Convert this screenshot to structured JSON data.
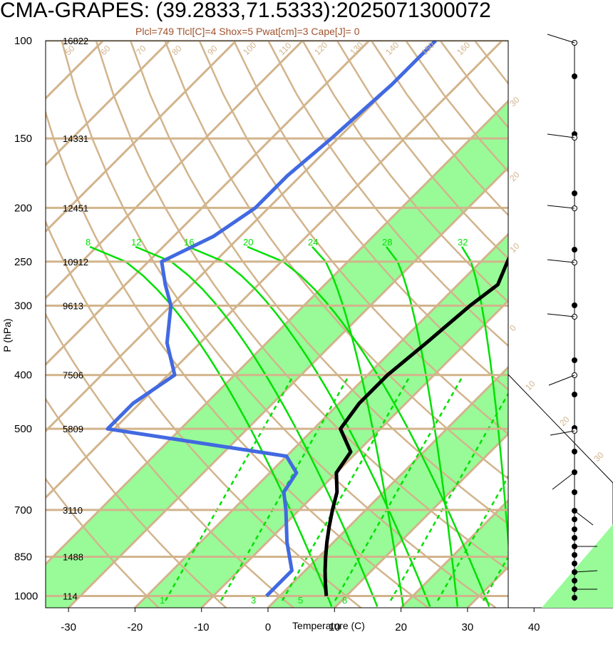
{
  "title": "CMA-GRAPES: (39.2833,71.5333):2025071300072",
  "subtitle": "Plcl=749 Tlcl[C]=4 Shox=5 Pwat[cm]=3 Cape[J]= 0",
  "colors": {
    "temperature": "#000000",
    "dewpoint": "#4169e1",
    "band": "#98fb98",
    "isotherm": "#d2b48c",
    "moist_adiabat": "#00e000",
    "mixing_ratio": "#00e000"
  },
  "chart_data": {
    "type": "line",
    "title": "CMA-GRAPES: (39.2833,71.5333):2025071300072",
    "xlabel": "Temperature (C)",
    "ylabel": "P (hPa)",
    "x_ticks": [
      -30,
      -20,
      -10,
      0,
      10,
      20,
      30,
      40
    ],
    "y_ticks": [
      100,
      150,
      200,
      250,
      300,
      400,
      500,
      700,
      850,
      1000
    ],
    "xlim": [
      -33,
      51
    ],
    "ylim": [
      1050,
      100
    ],
    "y_scale": "log",
    "height_labels": [
      {
        "p": 100,
        "label": "16822"
      },
      {
        "p": 150,
        "label": "14331"
      },
      {
        "p": 200,
        "label": "12451"
      },
      {
        "p": 250,
        "label": "10912"
      },
      {
        "p": 300,
        "label": "9613"
      },
      {
        "p": 400,
        "label": "7506"
      },
      {
        "p": 500,
        "label": "5809"
      },
      {
        "p": 700,
        "label": "3110"
      },
      {
        "p": 850,
        "label": "1488"
      },
      {
        "p": 1000,
        "label": "114"
      }
    ],
    "series": [
      {
        "name": "Temperature",
        "points": [
          [
            -10,
            100
          ],
          [
            -14,
            120
          ],
          [
            -16,
            150
          ],
          [
            -19,
            175
          ],
          [
            -19.5,
            200
          ],
          [
            -18,
            225
          ],
          [
            -16,
            250
          ],
          [
            -14,
            275
          ],
          [
            -15,
            300
          ],
          [
            -16,
            350
          ],
          [
            -17,
            400
          ],
          [
            -17,
            450
          ],
          [
            -16,
            500
          ],
          [
            -11,
            550
          ],
          [
            -10,
            600
          ],
          [
            -7,
            650
          ],
          [
            -5,
            700
          ],
          [
            -3,
            750
          ],
          [
            -1,
            800
          ],
          [
            1,
            850
          ],
          [
            3,
            900
          ],
          [
            5,
            950
          ],
          [
            7,
            1000
          ]
        ]
      },
      {
        "name": "Dewpoint",
        "points": [
          [
            -60,
            100
          ],
          [
            -60,
            120
          ],
          [
            -61,
            150
          ],
          [
            -62,
            175
          ],
          [
            -62,
            200
          ],
          [
            -64,
            225
          ],
          [
            -68,
            250
          ],
          [
            -64,
            275
          ],
          [
            -60,
            300
          ],
          [
            -55,
            350
          ],
          [
            -49,
            400
          ],
          [
            -51,
            450
          ],
          [
            -51,
            500
          ],
          [
            -20,
            560
          ],
          [
            -16,
            600
          ],
          [
            -15,
            650
          ],
          [
            -12,
            700
          ],
          [
            -7,
            800
          ],
          [
            -2,
            900
          ],
          [
            -2,
            1000
          ]
        ]
      }
    ],
    "isotherm_labels": [
      "-30",
      "-20",
      "-10",
      "0",
      "10",
      "20",
      "30",
      "40",
      "50",
      "60",
      "70",
      "80",
      "90",
      "100",
      "110",
      "120",
      "130",
      "140",
      "150",
      "160"
    ],
    "moist_adiabat_labels": [
      "8",
      "12",
      "16",
      "20",
      "24",
      "28",
      "32"
    ],
    "mixing_ratio_labels": [
      "1",
      "3",
      "5",
      "8"
    ],
    "wind_barbs_present": true
  }
}
